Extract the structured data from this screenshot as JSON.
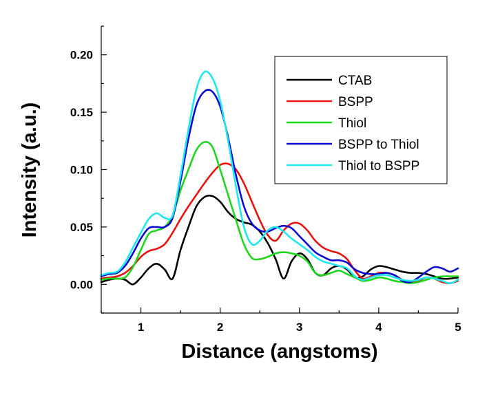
{
  "chart_data": {
    "type": "line",
    "xlabel": "Distance (angstoms)",
    "ylabel": "Intensity (a.u.)",
    "xlim": [
      0.5,
      5
    ],
    "ylim": [
      -0.025,
      0.225
    ],
    "x_ticks": [
      "1",
      "2",
      "3",
      "4",
      "5"
    ],
    "y_ticks": [
      "0.00",
      "0.05",
      "0.10",
      "0.15",
      "0.20"
    ],
    "legend_position": "top-right",
    "grid": false,
    "series": [
      {
        "name": "CTAB",
        "color": "#000000",
        "points": [
          [
            0.5,
            0.002
          ],
          [
            0.6,
            0.004
          ],
          [
            0.7,
            0.005
          ],
          [
            0.8,
            0.004
          ],
          [
            0.9,
            0.0
          ],
          [
            1.0,
            0.006
          ],
          [
            1.1,
            0.014
          ],
          [
            1.2,
            0.018
          ],
          [
            1.3,
            0.013
          ],
          [
            1.4,
            0.005
          ],
          [
            1.5,
            0.03
          ],
          [
            1.6,
            0.05
          ],
          [
            1.7,
            0.068
          ],
          [
            1.8,
            0.076
          ],
          [
            1.9,
            0.077
          ],
          [
            2.0,
            0.072
          ],
          [
            2.1,
            0.063
          ],
          [
            2.2,
            0.057
          ],
          [
            2.3,
            0.054
          ],
          [
            2.4,
            0.052
          ],
          [
            2.5,
            0.046
          ],
          [
            2.6,
            0.036
          ],
          [
            2.7,
            0.022
          ],
          [
            2.8,
            0.005
          ],
          [
            2.9,
            0.02
          ],
          [
            3.0,
            0.027
          ],
          [
            3.1,
            0.022
          ],
          [
            3.2,
            0.01
          ],
          [
            3.3,
            0.008
          ],
          [
            3.4,
            0.014
          ],
          [
            3.5,
            0.016
          ],
          [
            3.6,
            0.013
          ],
          [
            3.7,
            0.006
          ],
          [
            3.8,
            0.007
          ],
          [
            3.9,
            0.013
          ],
          [
            4.0,
            0.016
          ],
          [
            4.1,
            0.015
          ],
          [
            4.2,
            0.013
          ],
          [
            4.3,
            0.011
          ],
          [
            4.4,
            0.01
          ],
          [
            4.5,
            0.01
          ],
          [
            4.6,
            0.009
          ],
          [
            4.7,
            0.007
          ],
          [
            4.8,
            0.005
          ],
          [
            4.9,
            0.005
          ],
          [
            5.0,
            0.006
          ]
        ]
      },
      {
        "name": "BSPP",
        "color": "#e8120e",
        "points": [
          [
            0.5,
            0.005
          ],
          [
            0.6,
            0.006
          ],
          [
            0.7,
            0.007
          ],
          [
            0.8,
            0.01
          ],
          [
            0.9,
            0.016
          ],
          [
            1.0,
            0.024
          ],
          [
            1.1,
            0.029
          ],
          [
            1.2,
            0.031
          ],
          [
            1.3,
            0.035
          ],
          [
            1.4,
            0.045
          ],
          [
            1.5,
            0.057
          ],
          [
            1.6,
            0.068
          ],
          [
            1.7,
            0.078
          ],
          [
            1.8,
            0.088
          ],
          [
            1.9,
            0.097
          ],
          [
            2.0,
            0.104
          ],
          [
            2.1,
            0.105
          ],
          [
            2.2,
            0.1
          ],
          [
            2.3,
            0.088
          ],
          [
            2.4,
            0.072
          ],
          [
            2.5,
            0.056
          ],
          [
            2.6,
            0.043
          ],
          [
            2.7,
            0.038
          ],
          [
            2.8,
            0.047
          ],
          [
            2.9,
            0.053
          ],
          [
            3.0,
            0.053
          ],
          [
            3.1,
            0.047
          ],
          [
            3.2,
            0.038
          ],
          [
            3.3,
            0.032
          ],
          [
            3.4,
            0.029
          ],
          [
            3.5,
            0.027
          ],
          [
            3.6,
            0.022
          ],
          [
            3.7,
            0.012
          ],
          [
            3.8,
            0.005
          ],
          [
            3.9,
            0.007
          ],
          [
            4.0,
            0.01
          ],
          [
            4.1,
            0.01
          ],
          [
            4.2,
            0.008
          ],
          [
            4.3,
            0.004
          ],
          [
            4.4,
            0.002
          ],
          [
            4.5,
            0.003
          ],
          [
            4.6,
            0.006
          ],
          [
            4.7,
            0.005
          ],
          [
            4.8,
            0.002
          ],
          [
            4.9,
            0.001
          ],
          [
            5.0,
            0.003
          ]
        ]
      },
      {
        "name": "Thiol",
        "color": "#1ed61e",
        "points": [
          [
            0.5,
            0.004
          ],
          [
            0.6,
            0.005
          ],
          [
            0.7,
            0.005
          ],
          [
            0.8,
            0.006
          ],
          [
            0.9,
            0.015
          ],
          [
            1.0,
            0.03
          ],
          [
            1.1,
            0.044
          ],
          [
            1.2,
            0.047
          ],
          [
            1.3,
            0.05
          ],
          [
            1.4,
            0.06
          ],
          [
            1.5,
            0.082
          ],
          [
            1.6,
            0.1
          ],
          [
            1.7,
            0.117
          ],
          [
            1.8,
            0.124
          ],
          [
            1.9,
            0.12
          ],
          [
            2.0,
            0.1
          ],
          [
            2.1,
            0.078
          ],
          [
            2.2,
            0.056
          ],
          [
            2.3,
            0.035
          ],
          [
            2.4,
            0.023
          ],
          [
            2.5,
            0.022
          ],
          [
            2.6,
            0.024
          ],
          [
            2.7,
            0.027
          ],
          [
            2.8,
            0.028
          ],
          [
            2.9,
            0.027
          ],
          [
            3.0,
            0.025
          ],
          [
            3.1,
            0.02
          ],
          [
            3.2,
            0.01
          ],
          [
            3.3,
            0.008
          ],
          [
            3.4,
            0.01
          ],
          [
            3.5,
            0.012
          ],
          [
            3.6,
            0.009
          ],
          [
            3.7,
            0.006
          ],
          [
            3.8,
            0.003
          ],
          [
            3.9,
            0.004
          ],
          [
            4.0,
            0.006
          ],
          [
            4.1,
            0.005
          ],
          [
            4.2,
            0.003
          ],
          [
            4.3,
            0.002
          ],
          [
            4.4,
            0.001
          ],
          [
            4.5,
            0.002
          ],
          [
            4.6,
            0.004
          ],
          [
            4.7,
            0.006
          ],
          [
            4.8,
            0.007
          ],
          [
            4.9,
            0.007
          ],
          [
            5.0,
            0.007
          ]
        ]
      },
      {
        "name": "BSPP to Thiol",
        "color": "#0a0ad2",
        "points": [
          [
            0.5,
            0.007
          ],
          [
            0.6,
            0.009
          ],
          [
            0.7,
            0.01
          ],
          [
            0.8,
            0.016
          ],
          [
            0.9,
            0.027
          ],
          [
            1.0,
            0.04
          ],
          [
            1.1,
            0.049
          ],
          [
            1.2,
            0.05
          ],
          [
            1.3,
            0.05
          ],
          [
            1.4,
            0.058
          ],
          [
            1.5,
            0.09
          ],
          [
            1.6,
            0.127
          ],
          [
            1.7,
            0.156
          ],
          [
            1.8,
            0.168
          ],
          [
            1.9,
            0.168
          ],
          [
            2.0,
            0.155
          ],
          [
            2.1,
            0.128
          ],
          [
            2.2,
            0.095
          ],
          [
            2.3,
            0.068
          ],
          [
            2.4,
            0.053
          ],
          [
            2.5,
            0.047
          ],
          [
            2.6,
            0.046
          ],
          [
            2.7,
            0.049
          ],
          [
            2.8,
            0.051
          ],
          [
            2.9,
            0.049
          ],
          [
            3.0,
            0.042
          ],
          [
            3.1,
            0.035
          ],
          [
            3.2,
            0.028
          ],
          [
            3.3,
            0.024
          ],
          [
            3.4,
            0.021
          ],
          [
            3.5,
            0.021
          ],
          [
            3.6,
            0.019
          ],
          [
            3.7,
            0.013
          ],
          [
            3.8,
            0.01
          ],
          [
            3.9,
            0.009
          ],
          [
            4.0,
            0.009
          ],
          [
            4.1,
            0.01
          ],
          [
            4.2,
            0.008
          ],
          [
            4.3,
            0.003
          ],
          [
            4.4,
            0.002
          ],
          [
            4.5,
            0.006
          ],
          [
            4.6,
            0.011
          ],
          [
            4.7,
            0.015
          ],
          [
            4.8,
            0.014
          ],
          [
            4.9,
            0.011
          ],
          [
            5.0,
            0.014
          ]
        ]
      },
      {
        "name": "Thiol to BSPP",
        "color": "#1ee8ee",
        "points": [
          [
            0.5,
            0.008
          ],
          [
            0.6,
            0.01
          ],
          [
            0.7,
            0.011
          ],
          [
            0.8,
            0.019
          ],
          [
            0.9,
            0.032
          ],
          [
            1.0,
            0.045
          ],
          [
            1.1,
            0.057
          ],
          [
            1.2,
            0.062
          ],
          [
            1.3,
            0.058
          ],
          [
            1.4,
            0.06
          ],
          [
            1.5,
            0.095
          ],
          [
            1.6,
            0.135
          ],
          [
            1.7,
            0.17
          ],
          [
            1.8,
            0.185
          ],
          [
            1.9,
            0.18
          ],
          [
            2.0,
            0.16
          ],
          [
            2.1,
            0.125
          ],
          [
            2.2,
            0.085
          ],
          [
            2.3,
            0.05
          ],
          [
            2.4,
            0.035
          ],
          [
            2.5,
            0.038
          ],
          [
            2.6,
            0.047
          ],
          [
            2.7,
            0.05
          ],
          [
            2.8,
            0.046
          ],
          [
            2.9,
            0.04
          ],
          [
            3.0,
            0.035
          ],
          [
            3.1,
            0.03
          ],
          [
            3.2,
            0.024
          ],
          [
            3.3,
            0.02
          ],
          [
            3.4,
            0.018
          ],
          [
            3.5,
            0.016
          ],
          [
            3.6,
            0.014
          ],
          [
            3.7,
            0.007
          ],
          [
            3.8,
            0.004
          ],
          [
            3.9,
            0.006
          ],
          [
            4.0,
            0.008
          ],
          [
            4.1,
            0.008
          ],
          [
            4.2,
            0.006
          ],
          [
            4.3,
            0.004
          ],
          [
            4.4,
            0.003
          ],
          [
            4.5,
            0.004
          ],
          [
            4.6,
            0.006
          ],
          [
            4.7,
            0.005
          ],
          [
            4.8,
            0.003
          ],
          [
            4.9,
            0.001
          ],
          [
            5.0,
            0.004
          ]
        ]
      }
    ]
  }
}
